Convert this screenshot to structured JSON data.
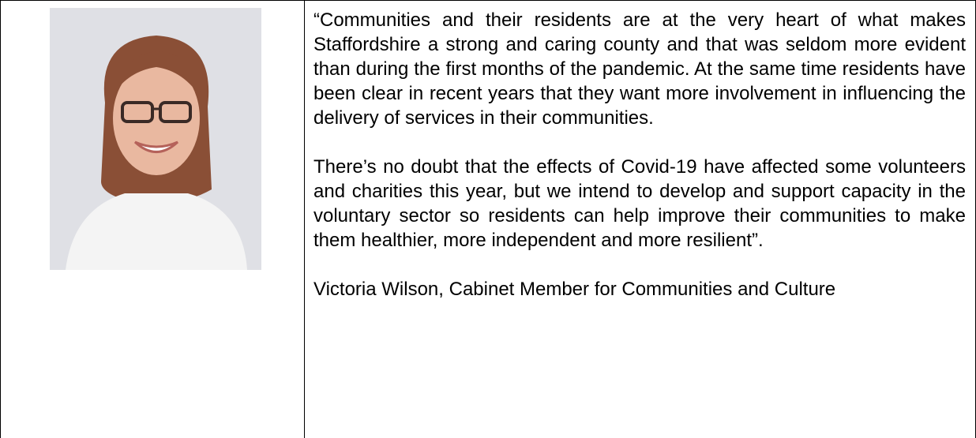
{
  "quote": {
    "paragraphs": [
      "“Communities and their residents are at the very heart of what makes Staffordshire a strong and caring county and that was seldom more evident than during the first months of the pandemic. At the same time residents have been clear in recent years that they want more involvement in influencing the delivery of services in their communities.",
      "There’s no doubt that the effects of Covid-19 have affected some volunteers and charities this year, but we intend to develop and support capacity in the voluntary sector so residents can help improve their communities to make them healthier, more independent and more resilient”."
    ],
    "attribution": "Victoria Wilson, Cabinet Member for Communities and Culture"
  }
}
